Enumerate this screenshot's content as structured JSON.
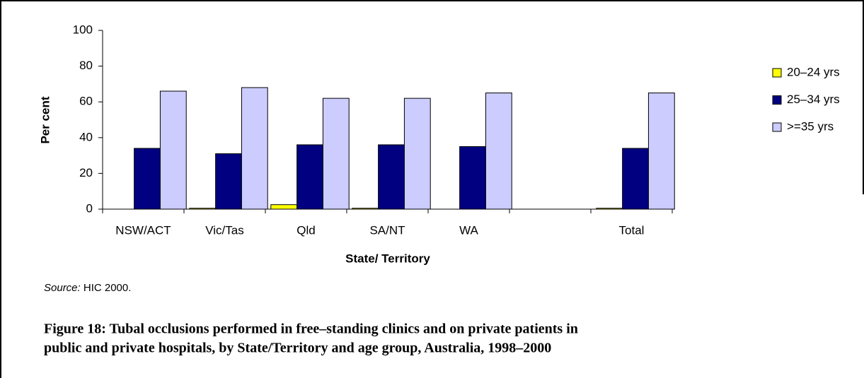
{
  "chart_data": {
    "type": "bar",
    "y_label": "Per cent",
    "x_label": "State/ Territory",
    "categories": [
      "NSW/ACT",
      "Vic/Tas",
      "Qld",
      "SA/NT",
      "WA",
      null,
      "Total"
    ],
    "series": [
      {
        "name": "20–24 yrs",
        "color": "#ffff00",
        "values": [
          0,
          0.5,
          2.5,
          0.5,
          0,
          null,
          0.5
        ]
      },
      {
        "name": "25–34 yrs",
        "color": "#000080",
        "values": [
          34,
          31,
          36,
          36,
          35,
          null,
          34
        ]
      },
      {
        "name": ">=35 yrs",
        "color": "#ccccff",
        "values": [
          66,
          68,
          62,
          62,
          65,
          null,
          65
        ]
      }
    ],
    "ylim": [
      0,
      100
    ],
    "yticks": [
      0,
      20,
      40,
      60,
      80,
      100
    ],
    "grid": false,
    "legend": "right"
  },
  "source_label": "Source:",
  "source_text": "HIC 2000.",
  "caption": [
    "Figure 18: Tubal occlusions performed in free–standing clinics and on private patients in",
    "public and private hospitals, by State/Territory and age group, Australia, 1998–2000"
  ]
}
